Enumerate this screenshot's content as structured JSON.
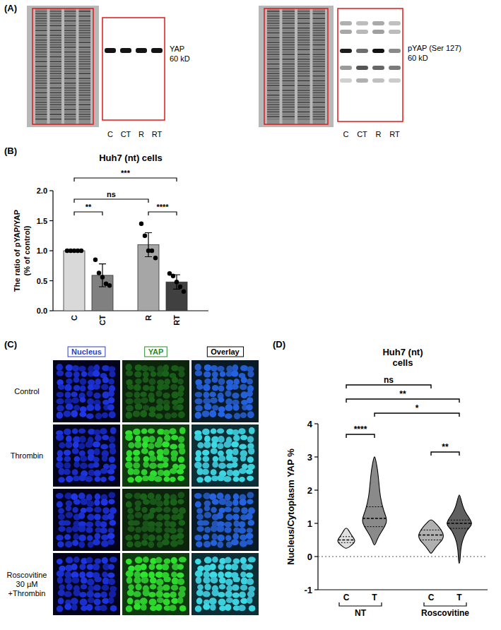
{
  "panel_letters": [
    "(A)",
    "(B)",
    "(C)",
    "(D)"
  ],
  "blots": [
    {
      "label": "YAP",
      "size": "60 kD",
      "lanes": [
        "C",
        "CT",
        "R",
        "RT"
      ]
    },
    {
      "label": "pYAP (Ser 127)",
      "size": "60 kD",
      "lanes": [
        "C",
        "CT",
        "R",
        "RT"
      ]
    }
  ],
  "chart_data": [
    {
      "type": "bar",
      "title": "Huh7 (nt) cells",
      "y_label": [
        "The ratio of pYAP/YAP",
        "(% of control)"
      ],
      "categories": [
        "C",
        "CT",
        "R",
        "RT"
      ],
      "values": [
        1.0,
        0.59,
        1.1,
        0.48
      ],
      "errors": [
        0,
        0.19,
        0.2,
        0.12
      ],
      "points": [
        [
          1,
          1,
          1,
          1,
          1
        ],
        [
          0.85,
          0.63,
          0.56,
          0.45,
          0.42
        ],
        [
          1.45,
          1.25,
          1.0,
          1.0,
          0.88
        ],
        [
          0.62,
          0.58,
          0.48,
          0.4,
          0.32
        ]
      ],
      "colors": [
        "#d9d9d9",
        "#808080",
        "#a6a6a6",
        "#404040"
      ],
      "ylim": [
        0,
        2
      ],
      "yticks": [
        {
          "value": 0,
          "label": "0.0"
        },
        0.5,
        {
          "value": 1,
          "label": "1.0"
        },
        1.5,
        {
          "value": 2,
          "label": "2.0"
        }
      ],
      "annotations": [
        {
          "from": 0,
          "to": 1,
          "label": "**"
        },
        {
          "from": 0,
          "to": 2,
          "label": "ns"
        },
        {
          "from": 0,
          "to": 3,
          "label": "***"
        },
        {
          "from": 2,
          "to": 3,
          "label": "****"
        }
      ]
    },
    {
      "type": "violin",
      "title": "Huh7 (nt) cells",
      "y_label": "Nucleus/Cytoplasm YAP %",
      "categories": [
        "C",
        "T",
        "C",
        "T"
      ],
      "groups": [
        {
          "label": "NT",
          "members": [
            0,
            1
          ]
        },
        {
          "label": "Roscovitine",
          "members": [
            2,
            3
          ]
        }
      ],
      "min": [
        0.25,
        0.35,
        0.1,
        -0.2
      ],
      "q1": [
        0.42,
        0.9,
        0.5,
        0.85
      ],
      "medians": [
        0.5,
        1.15,
        0.65,
        1.0
      ],
      "q3": [
        0.6,
        1.5,
        0.8,
        1.1
      ],
      "max": [
        0.85,
        3.0,
        1.1,
        1.85
      ],
      "density": [
        [
          [
            0.25,
            0.1
          ],
          [
            0.35,
            0.45
          ],
          [
            0.45,
            0.7
          ],
          [
            0.55,
            0.6
          ],
          [
            0.65,
            0.4
          ],
          [
            0.75,
            0.25
          ],
          [
            0.85,
            0.08
          ]
        ],
        [
          [
            0.35,
            0.05
          ],
          [
            0.6,
            0.3
          ],
          [
            0.9,
            0.8
          ],
          [
            1.1,
            1.0
          ],
          [
            1.4,
            0.7
          ],
          [
            1.8,
            0.45
          ],
          [
            2.2,
            0.35
          ],
          [
            2.6,
            0.25
          ],
          [
            3.0,
            0.05
          ]
        ],
        [
          [
            0.1,
            0.05
          ],
          [
            0.3,
            0.4
          ],
          [
            0.5,
            0.9
          ],
          [
            0.65,
            1.0
          ],
          [
            0.8,
            0.8
          ],
          [
            0.95,
            0.5
          ],
          [
            1.1,
            0.1
          ]
        ],
        [
          [
            -0.2,
            0.05
          ],
          [
            0.2,
            0.1
          ],
          [
            0.5,
            0.25
          ],
          [
            0.8,
            0.6
          ],
          [
            0.95,
            1.0
          ],
          [
            1.1,
            0.9
          ],
          [
            1.4,
            0.35
          ],
          [
            1.85,
            0.05
          ]
        ]
      ],
      "colors": [
        "#e0e0e0",
        "#8a8a8a",
        "#b0b0b0",
        "#606060"
      ],
      "ref_line": 0,
      "ylim": [
        -1,
        4
      ],
      "yticks": [
        -1,
        0,
        1,
        2,
        3,
        4
      ],
      "annotations": [
        {
          "from": 0,
          "to": 2,
          "label": "ns"
        },
        {
          "from": 0,
          "to": 3,
          "label": "**"
        },
        {
          "from": 1,
          "to": 3,
          "label": "*"
        },
        {
          "from": 0,
          "to": 1,
          "label": "****"
        },
        {
          "from": 2,
          "to": 3,
          "label": "**"
        }
      ]
    }
  ],
  "micrographs": {
    "columns": [
      "Nucleus",
      "YAP",
      "Overlay"
    ],
    "rows": [
      "Control",
      "Thrombin",
      null,
      "Roscovitine 30 µM +Thrombin"
    ]
  }
}
